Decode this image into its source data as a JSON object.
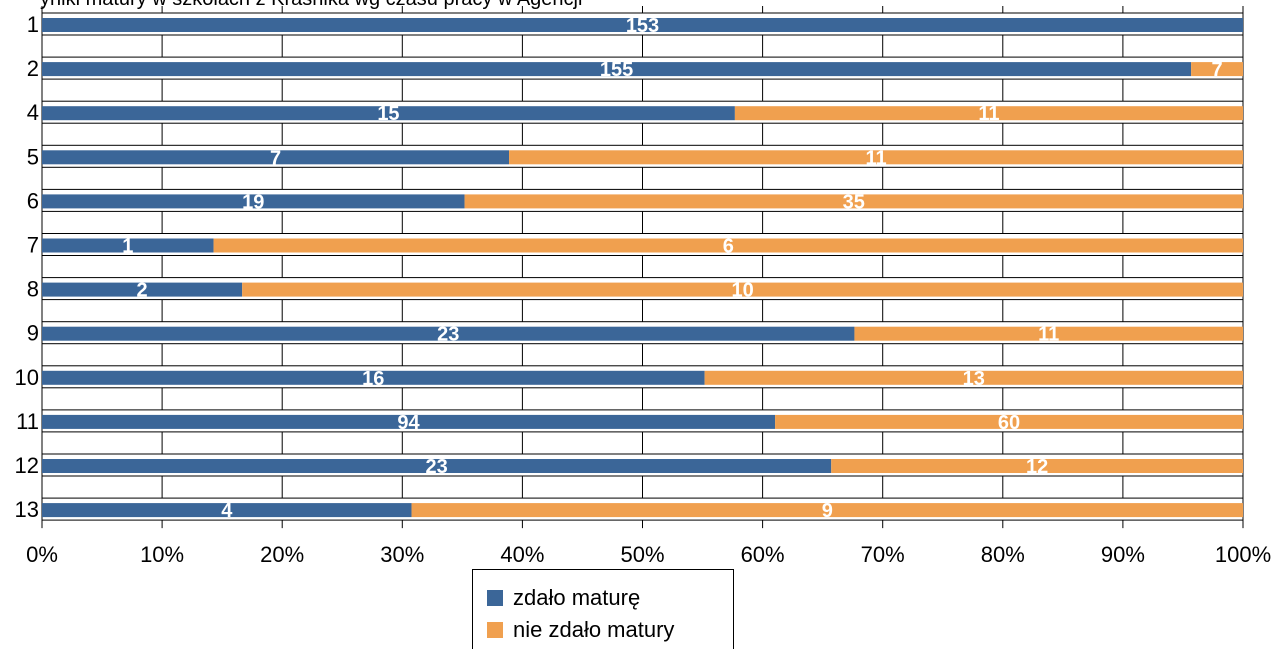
{
  "chart_data": {
    "type": "bar",
    "orientation": "horizontal",
    "stacked": "percent",
    "title": "yniki matury w szkołach z Kraśnika wg czasu pracy w Agencji",
    "categories": [
      "1",
      "2",
      "4",
      "5",
      "6",
      "7",
      "8",
      "9",
      "10",
      "11",
      "12",
      "13"
    ],
    "series": [
      {
        "name": "zdało maturę",
        "color": "#3b6698",
        "values": [
          153,
          155,
          15,
          7,
          19,
          1,
          2,
          23,
          16,
          94,
          23,
          4
        ]
      },
      {
        "name": "nie zdało matury",
        "color": "#f0a04f",
        "values": [
          0,
          7,
          11,
          11,
          35,
          6,
          10,
          11,
          13,
          60,
          12,
          9
        ]
      }
    ],
    "x_ticks": [
      "0%",
      "10%",
      "20%",
      "30%",
      "40%",
      "50%",
      "60%",
      "70%",
      "80%",
      "90%",
      "100%"
    ],
    "xlim": [
      0,
      100
    ],
    "grid": true,
    "legend_position": "bottom"
  }
}
